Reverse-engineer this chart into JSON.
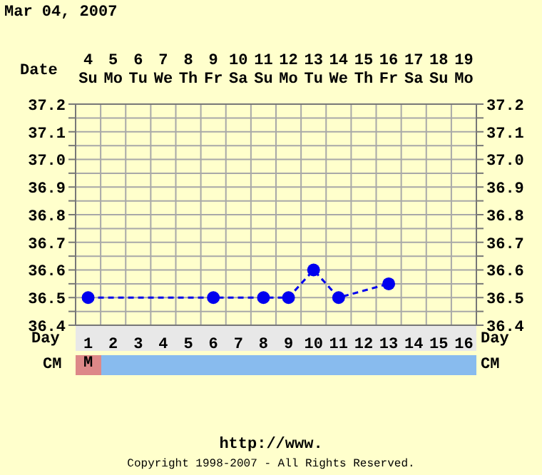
{
  "chart_data": {
    "type": "line",
    "title": "Mar 04, 2007",
    "xlabel": "Day",
    "x2label": "Date",
    "x": [
      1,
      6,
      8,
      9,
      10,
      11,
      13
    ],
    "series": [
      {
        "color": "#0000ee",
        "line_style": "dashed",
        "values": [
          36.5,
          36.5,
          36.5,
          36.5,
          36.6,
          36.5,
          36.55
        ]
      }
    ],
    "xlim": [
      0.5,
      16.5
    ],
    "xticks": [
      1,
      2,
      3,
      4,
      5,
      6,
      7,
      8,
      9,
      10,
      11,
      12,
      13,
      14,
      15,
      16
    ],
    "x2lim": [
      3.5,
      19.5
    ],
    "x2ticks": [
      {
        "value": 4,
        "label": "4\nSu"
      },
      {
        "value": 5,
        "label": "5\nMo"
      },
      {
        "value": 6,
        "label": "6\nTu"
      },
      {
        "value": 7,
        "label": "7\nWe"
      },
      {
        "value": 8,
        "label": "8\nTh"
      },
      {
        "value": 9,
        "label": "9\nFr"
      },
      {
        "value": 10,
        "label": "10\nSa"
      },
      {
        "value": 11,
        "label": "11\nSu"
      },
      {
        "value": 12,
        "label": "12\nMo"
      },
      {
        "value": 13,
        "label": "13\nTu"
      },
      {
        "value": 14,
        "label": "14\nWe"
      },
      {
        "value": 15,
        "label": "15\nTh"
      },
      {
        "value": 16,
        "label": "16\nFr"
      },
      {
        "value": 17,
        "label": "17\nSa"
      },
      {
        "value": 18,
        "label": "18\nSu"
      },
      {
        "value": 19,
        "label": "19\nMo"
      }
    ],
    "ylim": [
      36.4,
      37.2
    ],
    "yticks": [
      36.4,
      {
        "value": 36.45,
        "label": null
      },
      36.5,
      {
        "value": 36.55,
        "label": null
      },
      36.6,
      {
        "value": 36.65,
        "label": null
      },
      36.7,
      {
        "value": 36.75,
        "label": null
      },
      36.8,
      {
        "value": 36.85,
        "label": null
      },
      36.9,
      {
        "value": 36.95,
        "label": null
      },
      {
        "value": 37,
        "label": "37.0"
      },
      {
        "value": 37.05,
        "label": null
      },
      37.1,
      {
        "value": 37.15,
        "label": null
      },
      37.2
    ],
    "y2lim": [
      36.4,
      37.2
    ],
    "y2ticks": [
      36.4,
      {
        "value": 36.45,
        "label": null
      },
      36.5,
      {
        "value": 36.55,
        "label": null
      },
      36.6,
      {
        "value": 36.65,
        "label": null
      },
      36.7,
      {
        "value": 36.75,
        "label": null
      },
      36.8,
      {
        "value": 36.85,
        "label": null
      },
      36.9,
      {
        "value": 36.95,
        "label": null
      },
      {
        "value": 37,
        "label": "37.0"
      },
      {
        "value": 37.05,
        "label": null
      },
      37.1,
      {
        "value": 37.15,
        "label": null
      },
      37.2
    ],
    "grid": true,
    "marker": "circle",
    "annotations": [
      "CM",
      "M",
      "http://www.",
      "Copyright 1998-2007 - All Rights Reserved."
    ]
  }
}
